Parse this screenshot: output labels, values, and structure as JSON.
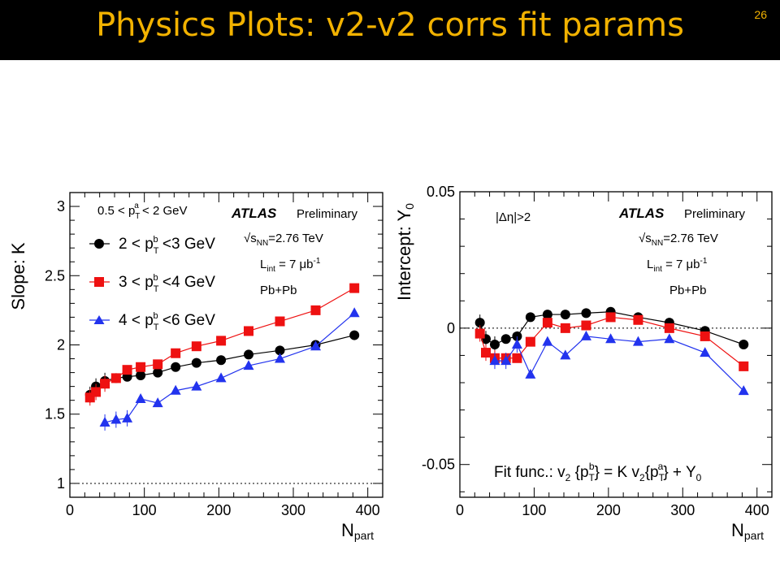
{
  "slide": {
    "title": "Physics Plots: v2-v2 corrs fit params",
    "number": "26"
  },
  "chart_data": [
    {
      "type": "scatter",
      "title": "",
      "xlabel": "N_part",
      "ylabel": "Slope: K",
      "xlim": [
        0,
        420
      ],
      "ylim": [
        0.9,
        3.1
      ],
      "x_ticks": [
        "0",
        "100",
        "200",
        "300",
        "400"
      ],
      "y_ticks": [
        "1",
        "1.5",
        "2",
        "2.5",
        "3"
      ],
      "reference_line": 1,
      "annotations": {
        "kinematic": "0.5 < p_T^a < 2 GeV",
        "experiment": "ATLAS",
        "status": "Preliminary",
        "energy": "√s_NN=2.76 TeV",
        "lumi": "L_int = 7 μb^-1",
        "system": "Pb+Pb"
      },
      "series": [
        {
          "name": "2 < p_T^b <3 GeV",
          "color": "#000000",
          "marker": "circle",
          "x": [
            27,
            35,
            47,
            62,
            77,
            95,
            118,
            142,
            170,
            203,
            240,
            282,
            330,
            382
          ],
          "y": [
            1.64,
            1.7,
            1.74,
            1.76,
            1.77,
            1.78,
            1.8,
            1.84,
            1.87,
            1.89,
            1.93,
            1.96,
            2.0,
            2.07
          ]
        },
        {
          "name": "3 < p_T^b <4 GeV",
          "color": "#ee1111",
          "marker": "square",
          "x": [
            27,
            35,
            47,
            62,
            77,
            95,
            118,
            142,
            170,
            203,
            240,
            282,
            330,
            382
          ],
          "y": [
            1.62,
            1.66,
            1.72,
            1.76,
            1.82,
            1.84,
            1.86,
            1.94,
            1.99,
            2.03,
            2.1,
            2.17,
            2.25,
            2.41
          ]
        },
        {
          "name": "4 < p_T^b <6 GeV",
          "color": "#2233ee",
          "marker": "triangle",
          "x": [
            47,
            62,
            77,
            95,
            118,
            142,
            170,
            203,
            240,
            282,
            330,
            382
          ],
          "y": [
            1.44,
            1.46,
            1.47,
            1.61,
            1.58,
            1.67,
            1.7,
            1.76,
            1.85,
            1.9,
            1.99,
            2.23
          ]
        }
      ]
    },
    {
      "type": "scatter",
      "title": "",
      "xlabel": "N_part",
      "ylabel": "Intercept: Y_0",
      "xlim": [
        0,
        420
      ],
      "ylim": [
        -0.062,
        0.05
      ],
      "x_ticks": [
        "0",
        "100",
        "200",
        "300",
        "400"
      ],
      "y_ticks": [
        "-0.05",
        "0",
        "0.05"
      ],
      "reference_line": 0,
      "annotations": {
        "cut": "|Δη|>2",
        "experiment": "ATLAS",
        "status": "Preliminary",
        "energy": "√s_NN=2.76 TeV",
        "lumi": "L_int = 7 μb^-1",
        "system": "Pb+Pb",
        "fit_func": "Fit func.: v2 {p_T^b} = K v2{p_T^a} + Y0"
      },
      "series": [
        {
          "name": "2 < p_T^b <3 GeV",
          "color": "#000000",
          "marker": "circle",
          "x": [
            27,
            35,
            47,
            62,
            77,
            95,
            118,
            142,
            170,
            203,
            240,
            282,
            330,
            382
          ],
          "y": [
            0.002,
            -0.004,
            -0.006,
            -0.004,
            -0.003,
            0.004,
            0.005,
            0.005,
            0.0055,
            0.006,
            0.004,
            0.002,
            -0.001,
            -0.006
          ]
        },
        {
          "name": "3 < p_T^b <4 GeV",
          "color": "#ee1111",
          "marker": "square",
          "x": [
            27,
            35,
            47,
            62,
            77,
            95,
            118,
            142,
            170,
            203,
            240,
            282,
            330,
            382
          ],
          "y": [
            -0.002,
            -0.009,
            -0.011,
            -0.011,
            -0.011,
            -0.005,
            0.002,
            0.0,
            0.001,
            0.004,
            0.003,
            0.0,
            -0.003,
            -0.014
          ]
        },
        {
          "name": "4 < p_T^b <6 GeV",
          "color": "#2233ee",
          "marker": "triangle",
          "x": [
            47,
            62,
            77,
            95,
            118,
            142,
            170,
            203,
            240,
            282,
            330,
            382
          ],
          "y": [
            -0.012,
            -0.012,
            -0.006,
            -0.017,
            -0.005,
            -0.01,
            -0.003,
            -0.004,
            -0.005,
            -0.004,
            -0.009,
            -0.023
          ]
        }
      ]
    }
  ]
}
